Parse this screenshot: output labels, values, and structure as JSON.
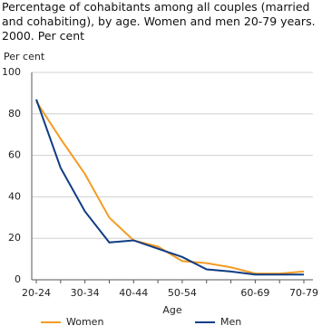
{
  "chart_data": {
    "type": "line",
    "title": "Percentage of cohabitants among all couples (married and cohabiting), by age. Women and men 20-79 years. 2000. Per cent",
    "y_label": "Per cent",
    "x_label": "Age",
    "categories": [
      "20-24",
      null,
      "30-34",
      null,
      "40-44",
      null,
      "50-54",
      null,
      null,
      "60-69",
      null,
      "70-79"
    ],
    "series": [
      {
        "name": "Women",
        "color": "#f39c24",
        "values": [
          86,
          68,
          51,
          30,
          19,
          16,
          9,
          8,
          6,
          3,
          3,
          4
        ]
      },
      {
        "name": "Men",
        "color": "#0f3c85",
        "values": [
          87,
          54,
          33,
          18,
          19,
          15,
          11,
          5,
          4,
          2.5,
          2.5,
          2.5
        ]
      }
    ],
    "ylim": [
      0,
      100
    ],
    "yticks": [
      0,
      20,
      40,
      60,
      80,
      100
    ],
    "grid": true
  }
}
